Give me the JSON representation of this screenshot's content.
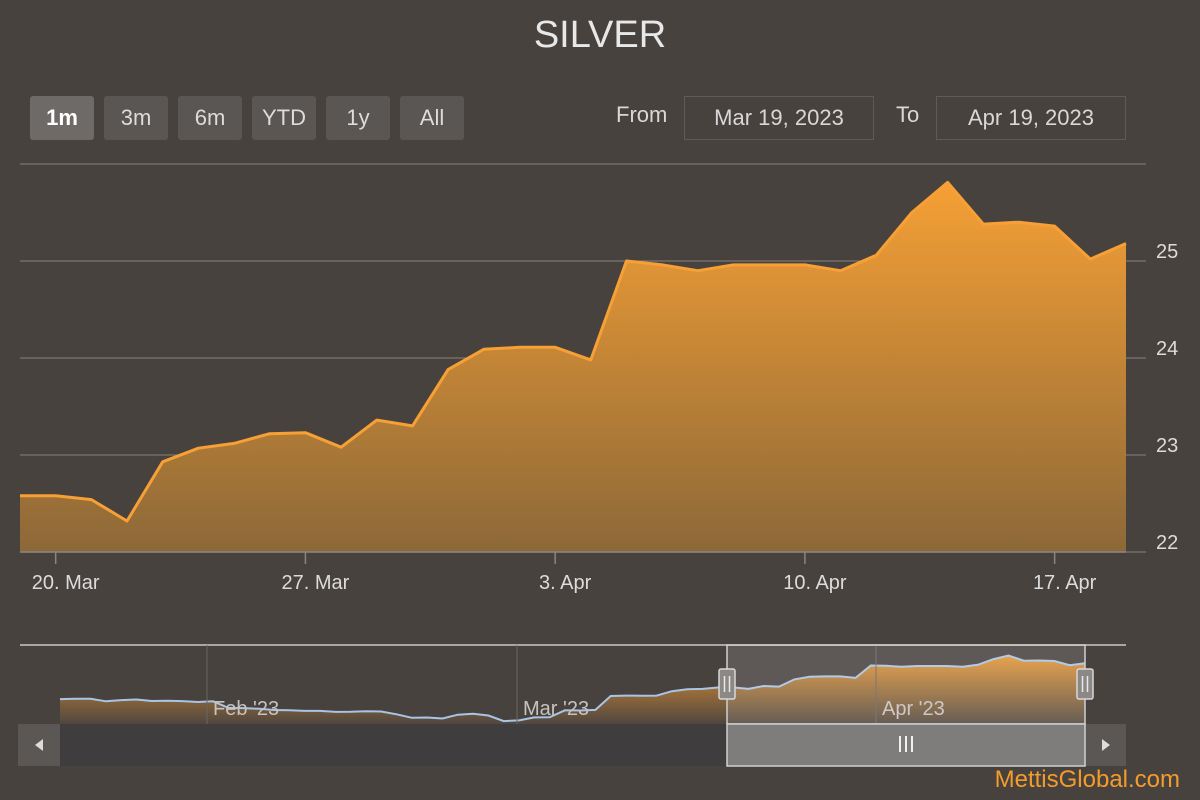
{
  "title": "SILVER",
  "range_selector": {
    "buttons": [
      "1m",
      "3m",
      "6m",
      "YTD",
      "1y",
      "All"
    ],
    "active": "1m"
  },
  "date_inputs": {
    "from_label": "From",
    "from_value": "Mar 19, 2023",
    "to_label": "To",
    "to_value": "Apr 19, 2023"
  },
  "brand": "MettisGlobal.com",
  "colors": {
    "background": "#48423f",
    "series_line": "#f6a035",
    "navigator_line": "#a8c4e6"
  },
  "navigator": {
    "labels": [
      "Feb '23",
      "Mar '23",
      "Apr '23"
    ],
    "handle_icon": "grip-lines-icon",
    "scroll_left_icon": "triangle-left-icon",
    "scroll_right_icon": "triangle-right-icon",
    "series_y": [
      22.3,
      22.32,
      22.32,
      22.12,
      22.22,
      22.27,
      22.15,
      22.16,
      22.14,
      22.07,
      22.12,
      21.6,
      21.58,
      21.52,
      21.42,
      21.4,
      21.35,
      21.35,
      21.27,
      21.28,
      21.33,
      21.3,
      21.08,
      20.8,
      20.82,
      20.74,
      21.05,
      21.13,
      20.98,
      20.53,
      20.59,
      20.83,
      20.84,
      21.4,
      21.38,
      21.43,
      22.55,
      22.58,
      22.57,
      22.58,
      22.93,
      23.09,
      23.12,
      23.23,
      23.24,
      23.12,
      23.35,
      23.3,
      23.88,
      24.1,
      24.12,
      24.12,
      24.0,
      25.0,
      24.97,
      24.9,
      24.96,
      24.96,
      24.96,
      24.9,
      25.05,
      25.5,
      25.8,
      25.38,
      25.4,
      25.36,
      25.02,
      25.18
    ]
  },
  "chart_data": {
    "type": "area",
    "title": "SILVER",
    "x": [
      "2023-03-19",
      "2023-03-20",
      "2023-03-21",
      "2023-03-22",
      "2023-03-23",
      "2023-03-24",
      "2023-03-25",
      "2023-03-26",
      "2023-03-27",
      "2023-03-28",
      "2023-03-29",
      "2023-03-30",
      "2023-03-31",
      "2023-04-01",
      "2023-04-02",
      "2023-04-03",
      "2023-04-04",
      "2023-04-05",
      "2023-04-06",
      "2023-04-07",
      "2023-04-08",
      "2023-04-09",
      "2023-04-10",
      "2023-04-11",
      "2023-04-12",
      "2023-04-13",
      "2023-04-14",
      "2023-04-15",
      "2023-04-16",
      "2023-04-17",
      "2023-04-18",
      "2023-04-19"
    ],
    "y": [
      22.58,
      22.58,
      22.54,
      22.32,
      22.93,
      23.07,
      23.12,
      23.22,
      23.23,
      23.08,
      23.36,
      23.3,
      23.88,
      24.09,
      24.11,
      24.11,
      23.98,
      25.0,
      24.96,
      24.9,
      24.96,
      24.96,
      24.96,
      24.9,
      25.06,
      25.5,
      25.81,
      25.38,
      25.4,
      25.36,
      25.02,
      25.18
    ],
    "x_ticks": [
      "20. Mar",
      "27. Mar",
      "3. Apr",
      "10. Apr",
      "17. Apr"
    ],
    "x_tick_dates": [
      "2023-03-20",
      "2023-03-27",
      "2023-04-03",
      "2023-04-10",
      "2023-04-17"
    ],
    "y_ticks": [
      22,
      23,
      24,
      25
    ],
    "ylim": [
      22,
      26
    ],
    "grid": true,
    "xlabel": "",
    "ylabel": ""
  }
}
